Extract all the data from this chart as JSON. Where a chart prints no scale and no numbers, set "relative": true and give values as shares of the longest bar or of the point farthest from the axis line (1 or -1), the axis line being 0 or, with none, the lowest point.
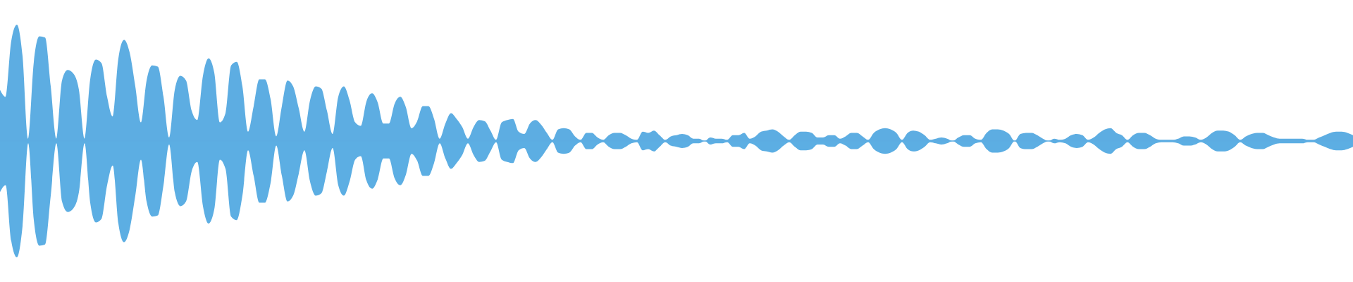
{
  "chart_data": {
    "type": "area",
    "relative": true,
    "categories": [
      null,
      null,
      null,
      null,
      null,
      null,
      null,
      null,
      null,
      null,
      null,
      null,
      null,
      null,
      null,
      null,
      null,
      null,
      null,
      null,
      null,
      null,
      null,
      null,
      null,
      null,
      null,
      null,
      null,
      null,
      null,
      null,
      null,
      null,
      null,
      null,
      null,
      null,
      null,
      null,
      null,
      null,
      null,
      null,
      null,
      null,
      null,
      null,
      null,
      null,
      null,
      null,
      null,
      null,
      null,
      null,
      null,
      null,
      null,
      null,
      null,
      null,
      null,
      null,
      null,
      null,
      null,
      null,
      null,
      null,
      null,
      null,
      null,
      null,
      null,
      null,
      null,
      null,
      null,
      null,
      null,
      null,
      null,
      null,
      null,
      null,
      null,
      null,
      null,
      null,
      null,
      null,
      null,
      null,
      null,
      null,
      null,
      null,
      null,
      null,
      null,
      null,
      null,
      null,
      null,
      null,
      null,
      null,
      null,
      null,
      null,
      null,
      null,
      null,
      null,
      null,
      null,
      null,
      null,
      null,
      null,
      null,
      null,
      null,
      null,
      null,
      null,
      null,
      null,
      null,
      null,
      null,
      null,
      null,
      null,
      null,
      null,
      null,
      null,
      null,
      null,
      null,
      null,
      null,
      null,
      null,
      null,
      null,
      null,
      null,
      null,
      null,
      null,
      null,
      null,
      null,
      null,
      null,
      null,
      null,
      null,
      null,
      null,
      null,
      null,
      null,
      null,
      null,
      null,
      null,
      null,
      null,
      null,
      null,
      null,
      null,
      null,
      null,
      null,
      null,
      null,
      null,
      null,
      null,
      null,
      null,
      null,
      null,
      null,
      null,
      null,
      null,
      null,
      null,
      null,
      null,
      null,
      null,
      null,
      null,
      null,
      null,
      null,
      null,
      null,
      null,
      null,
      null,
      null,
      null,
      null,
      null,
      null,
      null,
      null,
      null,
      null,
      null,
      null,
      null,
      null,
      null,
      null,
      null,
      null,
      null,
      null,
      null,
      null,
      null,
      null,
      null,
      null,
      null,
      null,
      null,
      null,
      null,
      null,
      null,
      null
    ],
    "series": [
      {
        "color": "#5dade2",
        "values": [
          0.44,
          0.38,
          0.86,
          1,
          0.73,
          0.02,
          0.68,
          0.9,
          0.89,
          0.47,
          0.02,
          0.52,
          0.61,
          0.58,
          0.44,
          0.02,
          0.53,
          0.7,
          0.67,
          0.38,
          0.21,
          0.71,
          0.87,
          0.76,
          0.47,
          0.16,
          0.52,
          0.65,
          0.64,
          0.38,
          0.03,
          0.44,
          0.56,
          0.52,
          0.26,
          0.18,
          0.56,
          0.71,
          0.59,
          0.16,
          0.24,
          0.65,
          0.68,
          0.47,
          0.08,
          0.3,
          0.53,
          0.53,
          0.36,
          0.04,
          0.3,
          0.52,
          0.47,
          0.28,
          0.08,
          0.35,
          0.47,
          0.45,
          0.26,
          0.06,
          0.38,
          0.47,
          0.35,
          0.16,
          0.13,
          0.34,
          0.41,
          0.33,
          0.15,
          0.15,
          0.32,
          0.38,
          0.29,
          0.11,
          0.17,
          0.3,
          0.3,
          0.19,
          0.02,
          0.15,
          0.24,
          0.19,
          0.12,
          0.02,
          0.12,
          0.18,
          0.17,
          0.09,
          0.01,
          0.16,
          0.18,
          0.19,
          0.08,
          0.06,
          0.15,
          0.18,
          0.14,
          0.07,
          0.01,
          0.1,
          0.11,
          0.1,
          0.04,
          0.01,
          0.07,
          0.07,
          0.03,
          0.01,
          0.05,
          0.07,
          0.07,
          0.05,
          0.02,
          0.01,
          0.08,
          0.07,
          0.09,
          0.05,
          0.01,
          0.04,
          0.05,
          0.06,
          0.05,
          0.02,
          0.02,
          0,
          0.03,
          0.02,
          0.02,
          0.01,
          0.05,
          0.05,
          0.07,
          0.02,
          0.04,
          0.08,
          0.09,
          0.1,
          0.08,
          0.04,
          0.01,
          0.05,
          0.08,
          0.08,
          0.07,
          0.03,
          0.03,
          0.05,
          0.05,
          0.02,
          0.04,
          0.07,
          0.07,
          0.04,
          0.01,
          0.07,
          0.1,
          0.11,
          0.1,
          0.07,
          0.01,
          0.07,
          0.09,
          0.08,
          0.05,
          0.01,
          0.02,
          0.03,
          0.02,
          0,
          0.03,
          0.05,
          0.05,
          0.02,
          0.01,
          0.07,
          0.1,
          0.1,
          0.09,
          0.06,
          0,
          0.06,
          0.07,
          0.07,
          0.05,
          0.02,
          0,
          0.02,
          0.01,
          0.02,
          0.05,
          0.06,
          0.05,
          0.01,
          0.03,
          0.07,
          0.1,
          0.11,
          0.07,
          0.05,
          0.01,
          0.05,
          0.07,
          0.07,
          0.05,
          0.02,
          0.01,
          0.01,
          0.01,
          0.02,
          0.04,
          0.04,
          0.03,
          0.01,
          0.03,
          0.07,
          0.09,
          0.09,
          0.08,
          0.05,
          0.01,
          0.04,
          0.06,
          0.07,
          0.07,
          0.05,
          0.03,
          0.02,
          0.02,
          0.02,
          0.02,
          0.02,
          0.01,
          0.01,
          0.03,
          0.05,
          0.07,
          0.08,
          0.08,
          0.07,
          0.05
        ]
      },
      {
        "color": "#5caee3",
        "values": [
          -0.44,
          -0.38,
          -0.86,
          -1,
          -0.73,
          -0.02,
          -0.68,
          -0.9,
          -0.89,
          -0.47,
          -0.02,
          -0.52,
          -0.61,
          -0.58,
          -0.44,
          -0.02,
          -0.53,
          -0.7,
          -0.67,
          -0.38,
          -0.21,
          -0.71,
          -0.87,
          -0.76,
          -0.47,
          -0.16,
          -0.52,
          -0.65,
          -0.64,
          -0.38,
          -0.03,
          -0.44,
          -0.56,
          -0.52,
          -0.26,
          -0.18,
          -0.56,
          -0.71,
          -0.59,
          -0.16,
          -0.24,
          -0.65,
          -0.68,
          -0.47,
          -0.08,
          -0.3,
          -0.53,
          -0.53,
          -0.36,
          -0.04,
          -0.3,
          -0.52,
          -0.47,
          -0.28,
          -0.08,
          -0.35,
          -0.47,
          -0.45,
          -0.26,
          -0.06,
          -0.38,
          -0.47,
          -0.35,
          -0.16,
          -0.13,
          -0.34,
          -0.41,
          -0.33,
          -0.15,
          -0.15,
          -0.32,
          -0.38,
          -0.29,
          -0.11,
          -0.17,
          -0.3,
          -0.3,
          -0.19,
          -0.02,
          -0.15,
          -0.24,
          -0.19,
          -0.12,
          -0.02,
          -0.12,
          -0.18,
          -0.17,
          -0.09,
          -0.01,
          -0.16,
          -0.18,
          -0.19,
          -0.08,
          -0.06,
          -0.15,
          -0.18,
          -0.14,
          -0.07,
          -0.01,
          -0.1,
          -0.11,
          -0.1,
          -0.04,
          -0.01,
          -0.07,
          -0.07,
          -0.03,
          -0.01,
          -0.05,
          -0.07,
          -0.07,
          -0.05,
          -0.02,
          -0.01,
          -0.08,
          -0.07,
          -0.09,
          -0.05,
          -0.01,
          -0.04,
          -0.05,
          -0.06,
          -0.05,
          -0.02,
          -0.02,
          0,
          -0.03,
          -0.02,
          -0.02,
          -0.01,
          -0.05,
          -0.05,
          -0.07,
          -0.02,
          -0.04,
          -0.08,
          -0.09,
          -0.1,
          -0.08,
          -0.04,
          -0.01,
          -0.05,
          -0.08,
          -0.08,
          -0.07,
          -0.03,
          -0.03,
          -0.05,
          -0.05,
          -0.02,
          -0.04,
          -0.07,
          -0.07,
          -0.04,
          -0.01,
          -0.07,
          -0.1,
          -0.11,
          -0.1,
          -0.07,
          -0.01,
          -0.07,
          -0.09,
          -0.08,
          -0.05,
          -0.01,
          -0.02,
          -0.03,
          -0.02,
          0,
          -0.03,
          -0.05,
          -0.05,
          -0.02,
          -0.01,
          -0.07,
          -0.1,
          -0.1,
          -0.09,
          -0.06,
          0,
          -0.06,
          -0.07,
          -0.07,
          -0.05,
          -0.02,
          0,
          -0.02,
          -0.01,
          -0.02,
          -0.05,
          -0.06,
          -0.05,
          -0.01,
          -0.03,
          -0.07,
          -0.1,
          -0.11,
          -0.07,
          -0.05,
          -0.01,
          -0.05,
          -0.07,
          -0.07,
          -0.05,
          -0.02,
          -0.01,
          -0.01,
          -0.01,
          -0.02,
          -0.04,
          -0.04,
          -0.03,
          -0.01,
          -0.03,
          -0.07,
          -0.09,
          -0.09,
          -0.08,
          -0.05,
          -0.01,
          -0.04,
          -0.06,
          -0.07,
          -0.07,
          -0.05,
          -0.03,
          -0.02,
          -0.02,
          -0.02,
          -0.02,
          -0.02,
          -0.01,
          -0.01,
          -0.03,
          -0.05,
          -0.07,
          -0.08,
          -0.08,
          -0.07,
          -0.05
        ]
      }
    ],
    "ref_lines": [
      {
        "axis": "y",
        "value": 0,
        "color": "#5dade2"
      }
    ]
  }
}
